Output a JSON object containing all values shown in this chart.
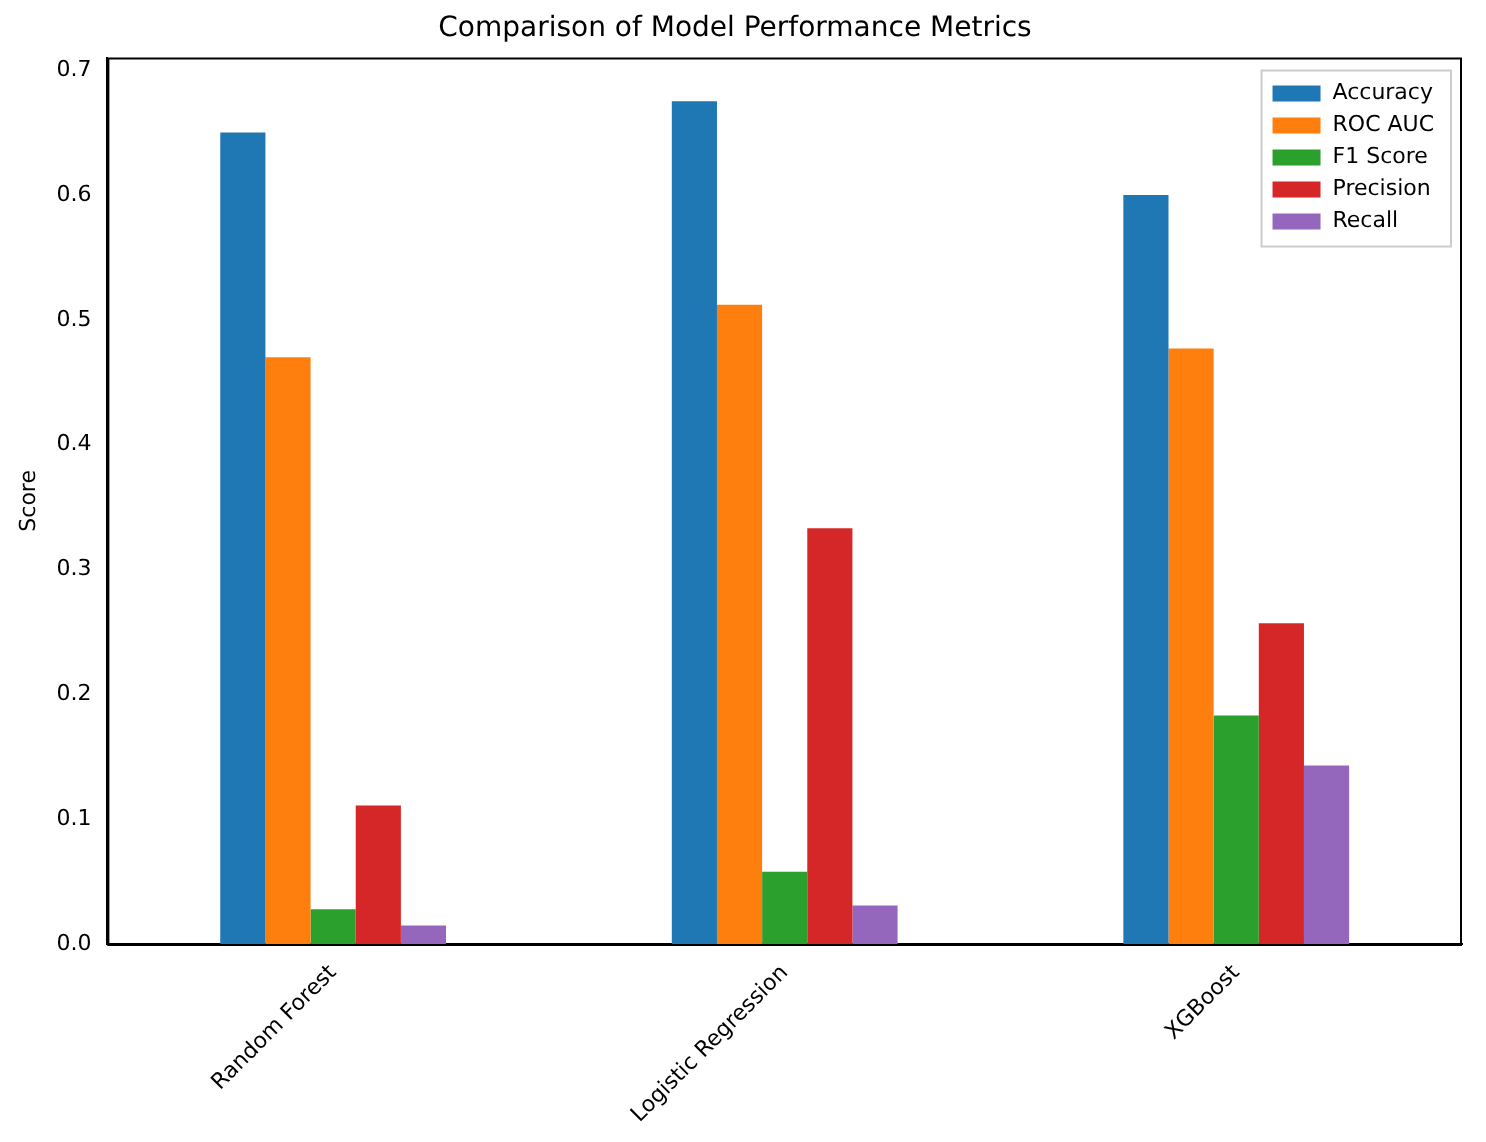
{
  "chart_data": {
    "type": "bar",
    "title": "Comparison of Model Performance Metrics",
    "ylabel": "Score",
    "categories": [
      "Random Forest",
      "Logistic Regression",
      "XGBoost"
    ],
    "series": [
      {
        "name": "Accuracy",
        "color": "#1f77b4",
        "values": [
          0.65,
          0.675,
          0.6
        ]
      },
      {
        "name": "ROC AUC",
        "color": "#ff7f0e",
        "values": [
          0.47,
          0.512,
          0.477
        ]
      },
      {
        "name": "F1 Score",
        "color": "#2ca02c",
        "values": [
          0.028,
          0.058,
          0.183
        ]
      },
      {
        "name": "Precision",
        "color": "#d62728",
        "values": [
          0.111,
          0.333,
          0.257
        ]
      },
      {
        "name": "Recall",
        "color": "#9467bd",
        "values": [
          0.015,
          0.031,
          0.143
        ]
      }
    ],
    "ylim": [
      0,
      0.71
    ],
    "yticks": [
      {
        "value": 0,
        "label": "0.0"
      },
      0.1,
      0.2,
      0.3,
      0.4,
      0.5,
      0.6,
      0.7
    ],
    "grid": false,
    "legend": "top right"
  }
}
